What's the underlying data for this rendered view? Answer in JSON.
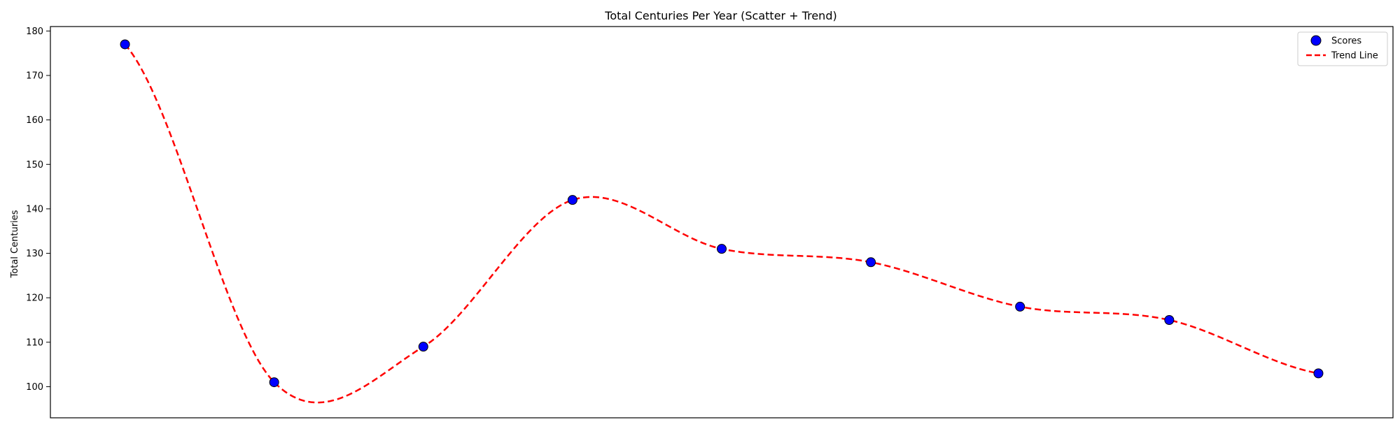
{
  "chart_data": {
    "type": "scatter",
    "title": "Total Centuries Per Year (Scatter + Trend)",
    "xlabel": "",
    "ylabel": "Total Centuries",
    "ylim": [
      93,
      181
    ],
    "yticks": [
      100,
      110,
      120,
      130,
      140,
      150,
      160,
      170,
      180
    ],
    "grid": false,
    "legend_placement": "top-right",
    "series": [
      {
        "name": "Scores",
        "kind": "scatter",
        "color": "#0000ff",
        "edgecolor": "#000000",
        "x": [
          0,
          1,
          2,
          3,
          4,
          5,
          6,
          7,
          8
        ],
        "values": [
          177,
          101,
          109,
          142,
          131,
          128,
          118,
          115,
          103
        ]
      },
      {
        "name": "Trend Line",
        "kind": "line",
        "color": "#ff0000",
        "style": "dashed",
        "x": [
          0,
          1,
          2,
          3,
          4,
          5,
          6,
          7,
          8
        ],
        "values": [
          177,
          101,
          109,
          142,
          131,
          128,
          118,
          115,
          103
        ]
      }
    ]
  }
}
